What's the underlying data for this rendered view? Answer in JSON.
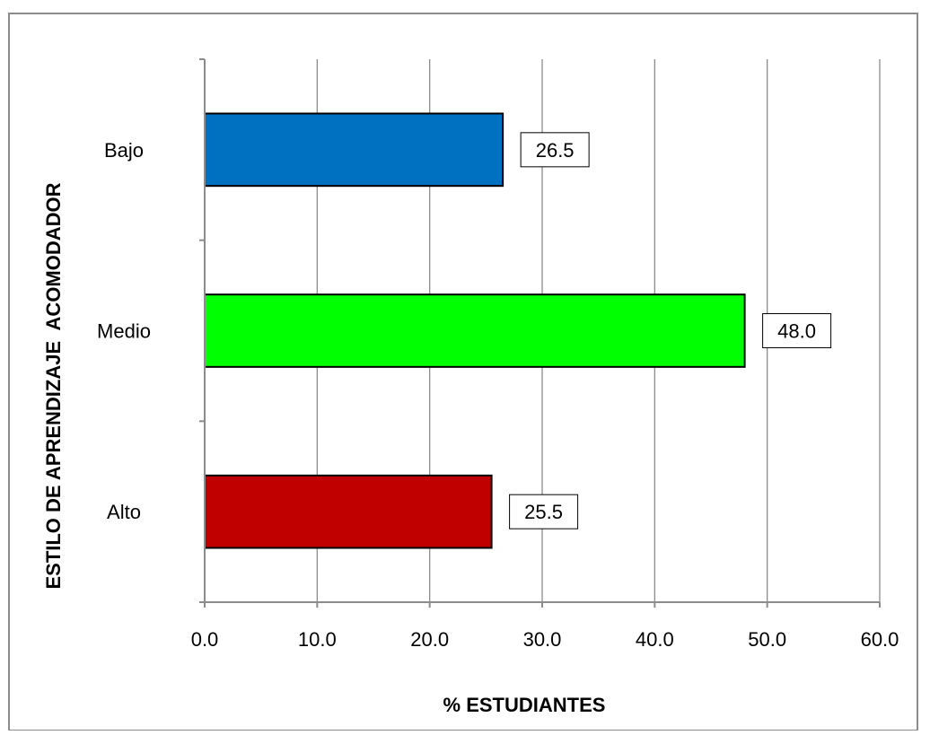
{
  "chart_data": {
    "type": "bar",
    "orientation": "horizontal",
    "categories": [
      "Bajo",
      "Medio",
      "Alto"
    ],
    "values": [
      26.5,
      48.0,
      25.5
    ],
    "value_labels": [
      "26.5",
      "48.0",
      "25.5"
    ],
    "colors": [
      "#0070C0",
      "#00FF00",
      "#C00000"
    ],
    "xlabel": "% ESTUDIANTES",
    "ylabel": "ESTILO DE APRENDIZAJE  ACOMODADOR",
    "xlim": [
      0,
      60
    ],
    "xticks": [
      0,
      10,
      20,
      30,
      40,
      50,
      60
    ],
    "xtick_labels": [
      "0.0",
      "10.0",
      "20.0",
      "30.0",
      "40.0",
      "50.0",
      "60.0"
    ],
    "grid": "vertical",
    "legend": "none"
  }
}
